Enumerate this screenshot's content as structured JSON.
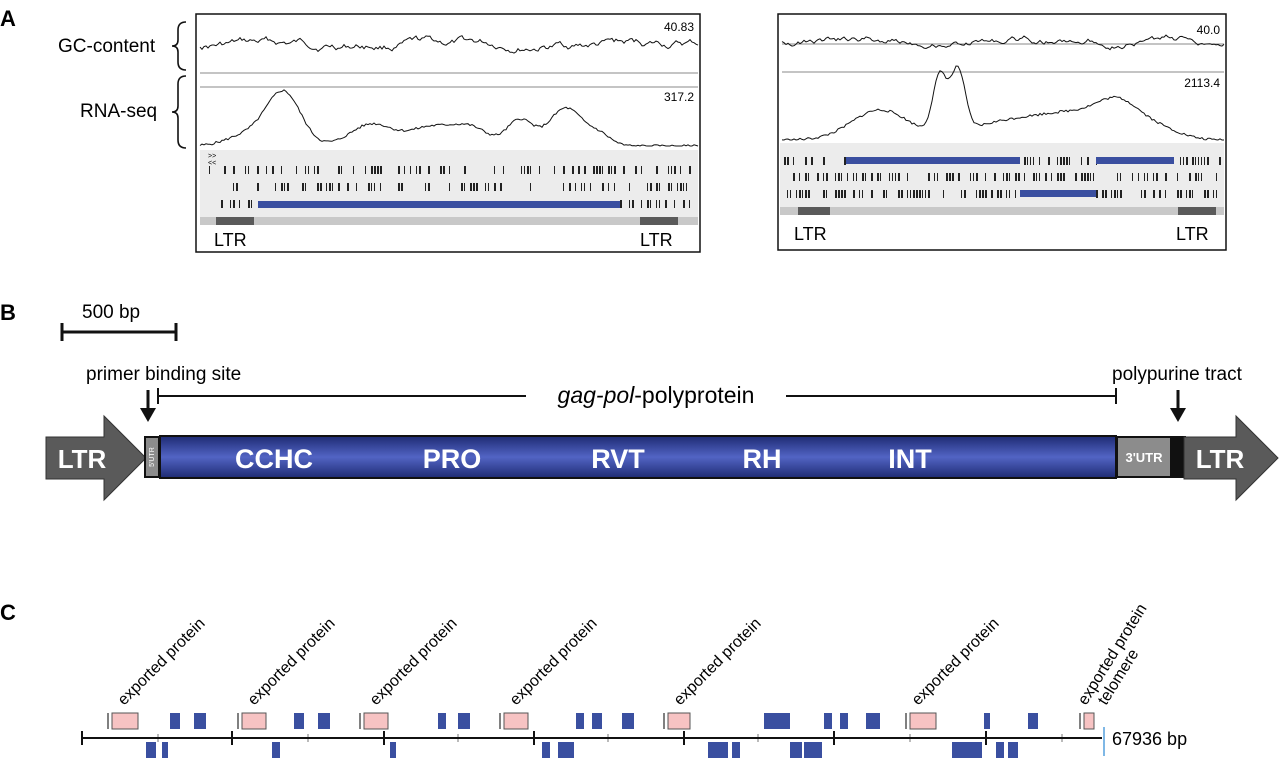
{
  "panel_a": {
    "letter": "A",
    "gc_label": "GC-content",
    "rna_label": "RNA-seq",
    "left": {
      "gc_max": "40.83",
      "rna_max": "317.2",
      "ltr_left": "LTR",
      "ltr_right": "LTR",
      "strand_marks": ">>\n<<"
    },
    "right": {
      "gc_max": "40.0",
      "rna_max": "2113.4",
      "ltr_left": "LTR",
      "ltr_right": "LTR"
    }
  },
  "panel_b": {
    "letter": "B",
    "scale_label": "500 bp",
    "pbs_label": "primer binding site",
    "ppt_label": "polypurine tract",
    "gag_italic": "gag-pol",
    "gag_rest": "-polyprotein",
    "ltr_left": "LTR",
    "ltr_right": "LTR",
    "utr5": "5'UTR",
    "utr3": "3'UTR",
    "domains": [
      "CCHC",
      "PRO",
      "RVT",
      "RH",
      "INT"
    ],
    "colors": {
      "gag_body": "#2e3d8f",
      "ltr": "#5a5a5a",
      "utr": "#8c8c8c"
    }
  },
  "panel_c": {
    "letter": "C",
    "exported_labels": [
      "exported protein",
      "exported protein",
      "exported protein",
      "exported protein",
      "exported protein",
      "exported protein",
      "exported protein"
    ],
    "telomere_label": "telomere",
    "length_label": "67936 bp",
    "colors": {
      "gene": "#3a4fa0",
      "exported": "#f7c3c3",
      "telomere": "#7fb8e6"
    }
  }
}
